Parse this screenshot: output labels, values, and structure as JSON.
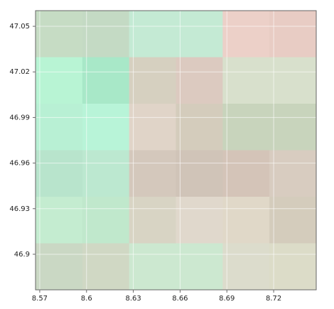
{
  "chart_data": {
    "type": "tile-grid",
    "xlim": [
      8.5673,
      8.7473
    ],
    "ylim": [
      46.8766,
      47.0603
    ],
    "xticks": [
      8.57,
      8.6,
      8.63,
      8.66,
      8.69,
      8.72
    ],
    "yticks": [
      46.9,
      46.93,
      46.96,
      46.99,
      47.02,
      47.05
    ],
    "grid": true,
    "cell_colors": [
      [
        "#c6dcc4",
        "#c4dac4",
        "#c4ead4",
        "#c4ead4",
        "#ecd0c8",
        "#e8ccc4"
      ],
      [
        "#b8f4d4",
        "#a8e8c8",
        "#d6d0c0",
        "#dccac0",
        "#d8e0cc",
        "#d8e0cc"
      ],
      [
        "#b8f0d4",
        "#b8f4d8",
        "#e0d4c8",
        "#d4ccbc",
        "#c8d4bc",
        "#c8d4bc"
      ],
      [
        "#b8e4cc",
        "#bce8d0",
        "#d4c8bc",
        "#d0c4b8",
        "#d4c4b8",
        "#d8ccc0"
      ],
      [
        "#c4ecd0",
        "#c0e8cc",
        "#d8d4c4",
        "#e0d8cc",
        "#e0d8c8",
        "#d4ccbc"
      ],
      [
        "#cad8c4",
        "#d0d8c4",
        "#cce8d0",
        "#cce8d0",
        "#dcdccc",
        "#dcdcc8"
      ]
    ]
  }
}
